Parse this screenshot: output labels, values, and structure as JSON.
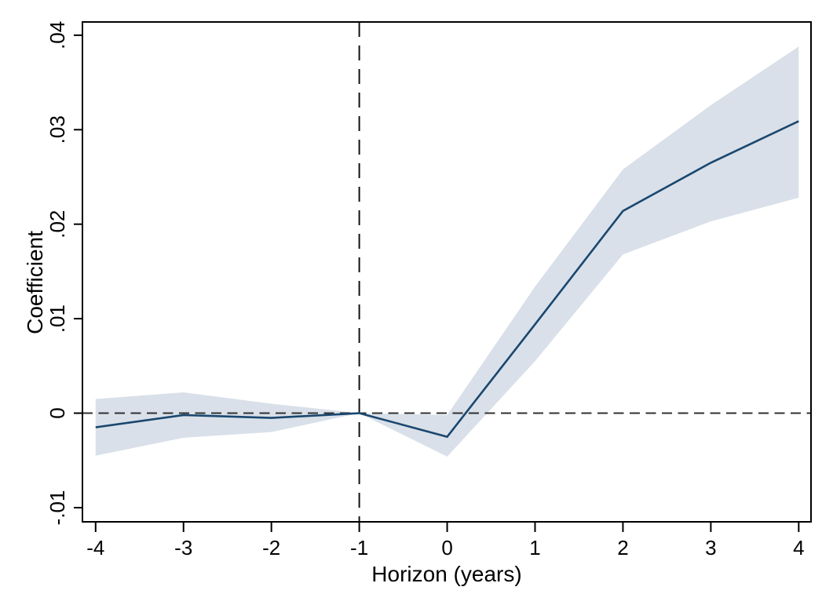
{
  "chart_data": {
    "type": "line",
    "title": "",
    "xlabel": "Horizon (years)",
    "ylabel": "Coefficient",
    "x": [
      -4,
      -3,
      -2,
      -1,
      0,
      1,
      2,
      3,
      4
    ],
    "series": [
      {
        "name": "coefficient",
        "values": [
          -0.0015,
          -0.0002,
          -0.0005,
          0,
          -0.0025,
          0.0094,
          0.0214,
          0.0265,
          0.0309
        ]
      },
      {
        "name": "ci_lower",
        "values": [
          -0.0045,
          -0.0026,
          -0.002,
          0,
          -0.0046,
          0.0055,
          0.0168,
          0.0203,
          0.0228
        ]
      },
      {
        "name": "ci_upper",
        "values": [
          0.0015,
          0.0022,
          0.001,
          0,
          -0.0002,
          0.0134,
          0.0258,
          0.0326,
          0.0388
        ]
      }
    ],
    "x_tick_labels": [
      "-4",
      "-3",
      "-2",
      "-1",
      "0",
      "1",
      "2",
      "3",
      "4"
    ],
    "x_tick_values": [
      -4,
      -3,
      -2,
      -1,
      0,
      1,
      2,
      3,
      4
    ],
    "y_tick_labels": [
      "-.01",
      "0",
      ".01",
      ".02",
      ".03",
      ".04"
    ],
    "y_tick_values": [
      -0.01,
      0,
      0.01,
      0.02,
      0.03,
      0.04
    ],
    "xlim": [
      -4.15,
      4.14
    ],
    "ylim": [
      -0.0115,
      0.0414
    ],
    "reference_lines": {
      "vertical_x": -1,
      "horizontal_y": 0
    },
    "grid": false,
    "legend": "none",
    "colors": {
      "line": "#1a476f",
      "band": "#d9e0e9",
      "zero_line": "#303030",
      "event_line": "#101010",
      "axis": "#000000",
      "background": "#ffffff"
    }
  }
}
